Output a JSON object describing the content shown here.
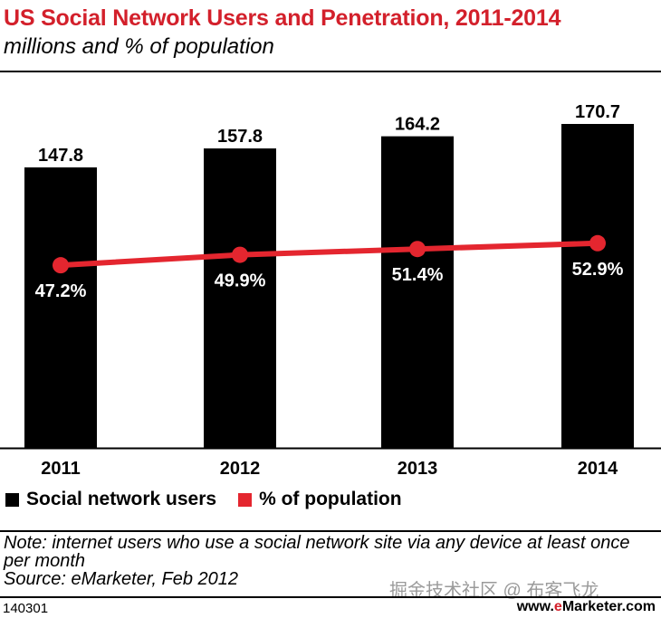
{
  "header": {
    "title": "US Social Network Users and Penetration, 2011-2014",
    "subtitle": "millions and % of population"
  },
  "chart_data": {
    "type": "bar",
    "categories": [
      "2011",
      "2012",
      "2013",
      "2014"
    ],
    "series": [
      {
        "name": "Social network users",
        "type": "bar",
        "values": [
          147.8,
          157.8,
          164.2,
          170.7
        ],
        "labels": [
          "147.8",
          "157.8",
          "164.2",
          "170.7"
        ],
        "color": "#000000"
      },
      {
        "name": "% of population",
        "type": "line",
        "values": [
          47.2,
          49.9,
          51.4,
          52.9
        ],
        "labels": [
          "47.2%",
          "49.9%",
          "51.4%",
          "52.9%"
        ],
        "color": "#e4262f"
      }
    ],
    "bar_ylim": [
      0,
      185
    ],
    "line_ylim": [
      0,
      105
    ],
    "grid": false,
    "legend_placement": "bottom-left"
  },
  "legend": {
    "items": [
      {
        "label": "Social network users",
        "color": "#000000"
      },
      {
        "label": "% of population",
        "color": "#e4262f"
      }
    ]
  },
  "note": {
    "text": "Note: internet users who use a social network site via any device at least once per month",
    "source": "Source: eMarketer, Feb 2012"
  },
  "footer": {
    "id": "140301",
    "watermark": "掘金技术社区 @ 布客飞龙",
    "brand_prefix": "www.",
    "brand_e": "e",
    "brand_rest": "Marketer.com"
  }
}
